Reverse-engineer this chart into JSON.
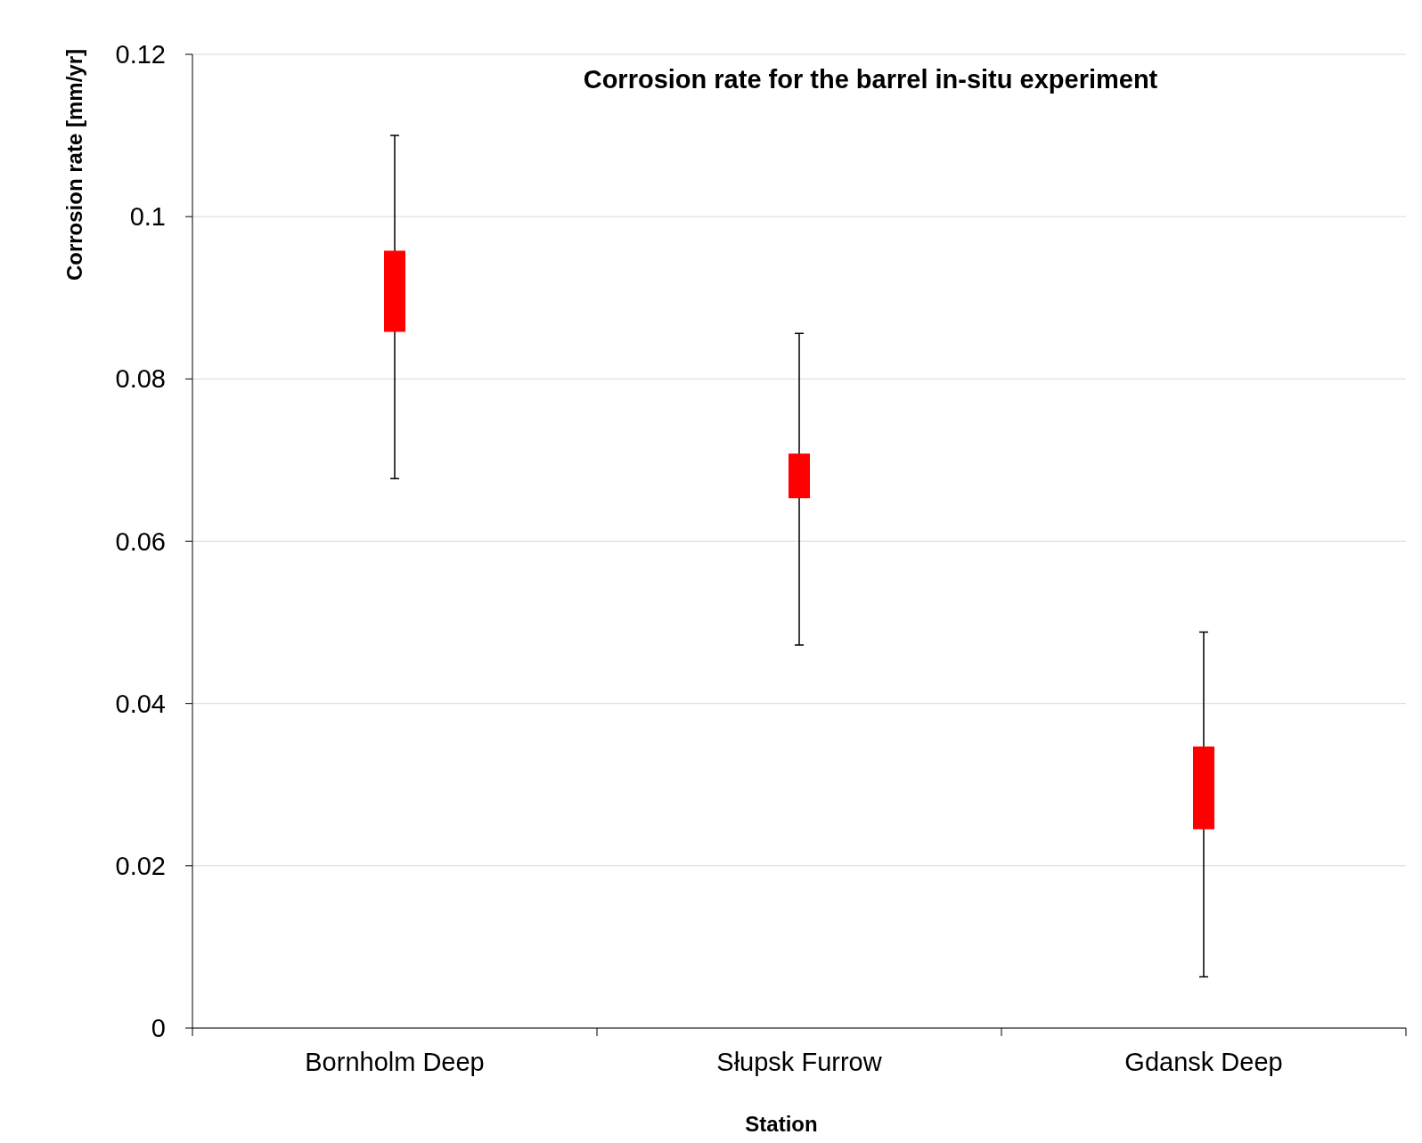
{
  "chart_data": {
    "type": "bar",
    "title": "Corrosion rate for the barrel in-situ experiment",
    "xlabel": "Station",
    "ylabel": "Corrosion rate [mm/yr]",
    "categories": [
      "Bornholm Deep",
      "Słupsk Furrow",
      "Gdansk Deep"
    ],
    "base": [
      0.0858,
      0.0653,
      0.0245
    ],
    "values": [
      0.01,
      0.0055,
      0.0102
    ],
    "errors": [
      [
        0.0677,
        0.11
      ],
      [
        0.0472,
        0.0856
      ],
      [
        0.0063,
        0.0488
      ]
    ],
    "color": "#ff0000",
    "ylim": [
      0,
      0.12
    ],
    "yticks": [
      0,
      0.02,
      0.04,
      0.06,
      0.08,
      0.1,
      0.12
    ],
    "grid": "y"
  }
}
